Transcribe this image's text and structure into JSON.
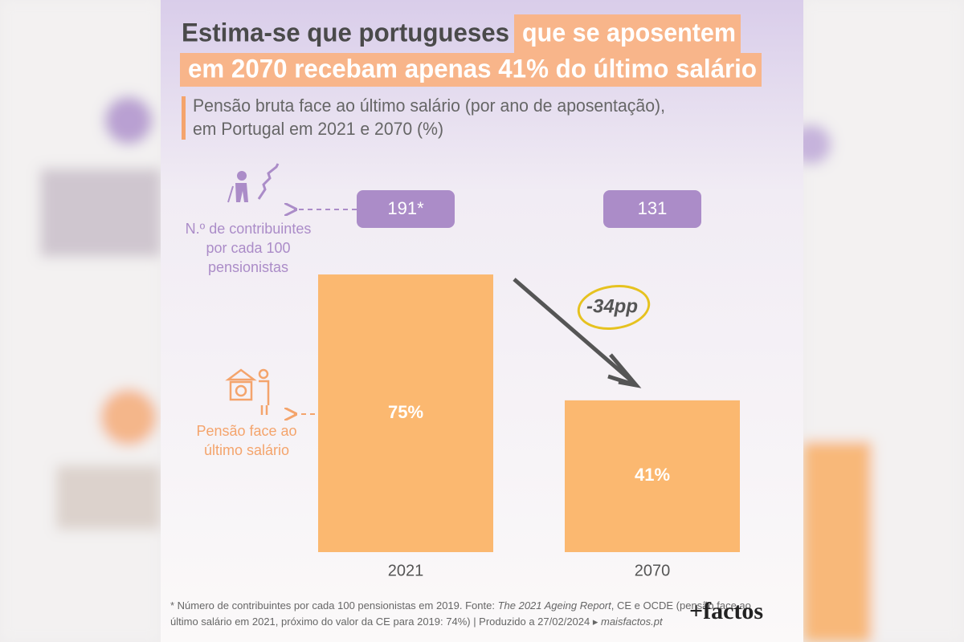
{
  "chart_data": {
    "type": "bar",
    "title_parts": [
      "Estima-se que portugueses",
      "que se aposentem",
      "em 2070 recebam apenas 41% do último salário"
    ],
    "subtitle_lines": [
      "Pensão bruta face ao último salário (por ano de aposentação),",
      "em Portugal em 2021 e 2070 (%)"
    ],
    "categories": [
      "2021",
      "2070"
    ],
    "values": [
      75,
      41
    ],
    "value_labels": [
      "75%",
      "41%"
    ],
    "color": "#fbb870",
    "bar_label_lines": [
      "Pensão face ao",
      "último salário"
    ],
    "contributors": {
      "label_lines": [
        "N.º de contribuintes",
        "por cada 100",
        "pensionistas"
      ],
      "values": [
        191,
        131
      ],
      "value_labels": [
        "191*",
        "131"
      ],
      "color": "#ab8cc8"
    },
    "annotation": "-34pp",
    "footnote_lines": [
      [
        "* Número de contribuintes por cada 100 pensionistas em 2019. Fonte: ",
        "The 2021 Ageing Report",
        ", CE e OCDE (pensão face ao"
      ],
      [
        "último salário em 2021, próximo do valor da CE para 2019: 74%) | Produzido a 27/02/2024 ▸ ",
        "maisfactos.pt"
      ]
    ],
    "logo": "+factos"
  }
}
